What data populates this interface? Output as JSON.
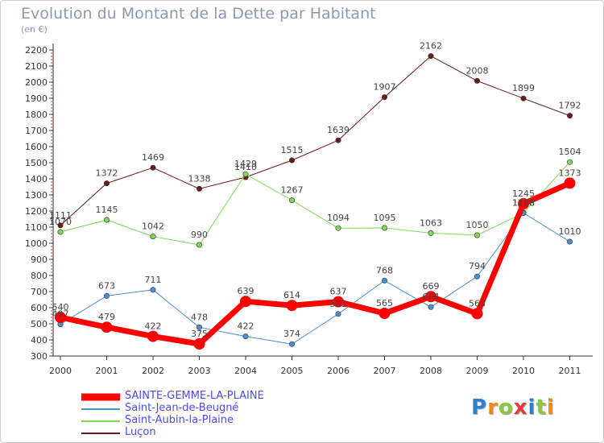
{
  "title": "Evolution du Montant de la Dette par Habitant",
  "unit": "(en €)",
  "logo": {
    "text": "Proxiti",
    "letters": [
      {
        "ch": "P",
        "color": "#2f7fd0"
      },
      {
        "ch": "r",
        "color": "#f08a1c"
      },
      {
        "ch": "o",
        "color": "#8cc63f"
      },
      {
        "ch": "x",
        "color": "#e83b3b"
      },
      {
        "ch": "i",
        "color": "#2f7fd0"
      },
      {
        "ch": "t",
        "color": "#8cc63f"
      },
      {
        "ch": "i",
        "color": "#f08a1c"
      }
    ]
  },
  "chart_data": {
    "type": "line",
    "title": "Evolution du Montant de la Dette par Habitant",
    "ylabel": "(en €)",
    "ylim": [
      300,
      2200
    ],
    "yticks": [
      300,
      400,
      500,
      600,
      700,
      800,
      900,
      1000,
      1100,
      1200,
      1300,
      1400,
      1500,
      1600,
      1700,
      1800,
      1900,
      2000,
      2100,
      2200
    ],
    "x": [
      "2000",
      "2001",
      "2002",
      "2003",
      "2004",
      "2005",
      "2006",
      "2007",
      "2008",
      "2009",
      "2010",
      "2011"
    ],
    "grid": false,
    "legend_position": "bottom-left",
    "series": [
      {
        "name": "Luçon",
        "color": "#6b1a1a",
        "values": [
          1111,
          1372,
          1469,
          1338,
          1410,
          1515,
          1639,
          1907,
          2162,
          2008,
          1899,
          1792
        ]
      },
      {
        "name": "Saint-Aubin-la-Plaine",
        "color": "#7ed957",
        "values": [
          1070,
          1145,
          1042,
          990,
          1429,
          1267,
          1094,
          1095,
          1063,
          1050,
          1188,
          1504
        ]
      },
      {
        "name": "Saint-Jean-de-Beugné",
        "color": "#4a8fd0",
        "values": [
          497,
          673,
          711,
          478,
          422,
          374,
          561,
          768,
          604,
          794,
          1188,
          1010
        ]
      },
      {
        "name": "SAINTE-GEMME-LA-PLAINE",
        "color": "#ff0000",
        "values": [
          540,
          479,
          422,
          375,
          639,
          614,
          637,
          565,
          669,
          563,
          1245,
          1373
        ]
      }
    ]
  }
}
